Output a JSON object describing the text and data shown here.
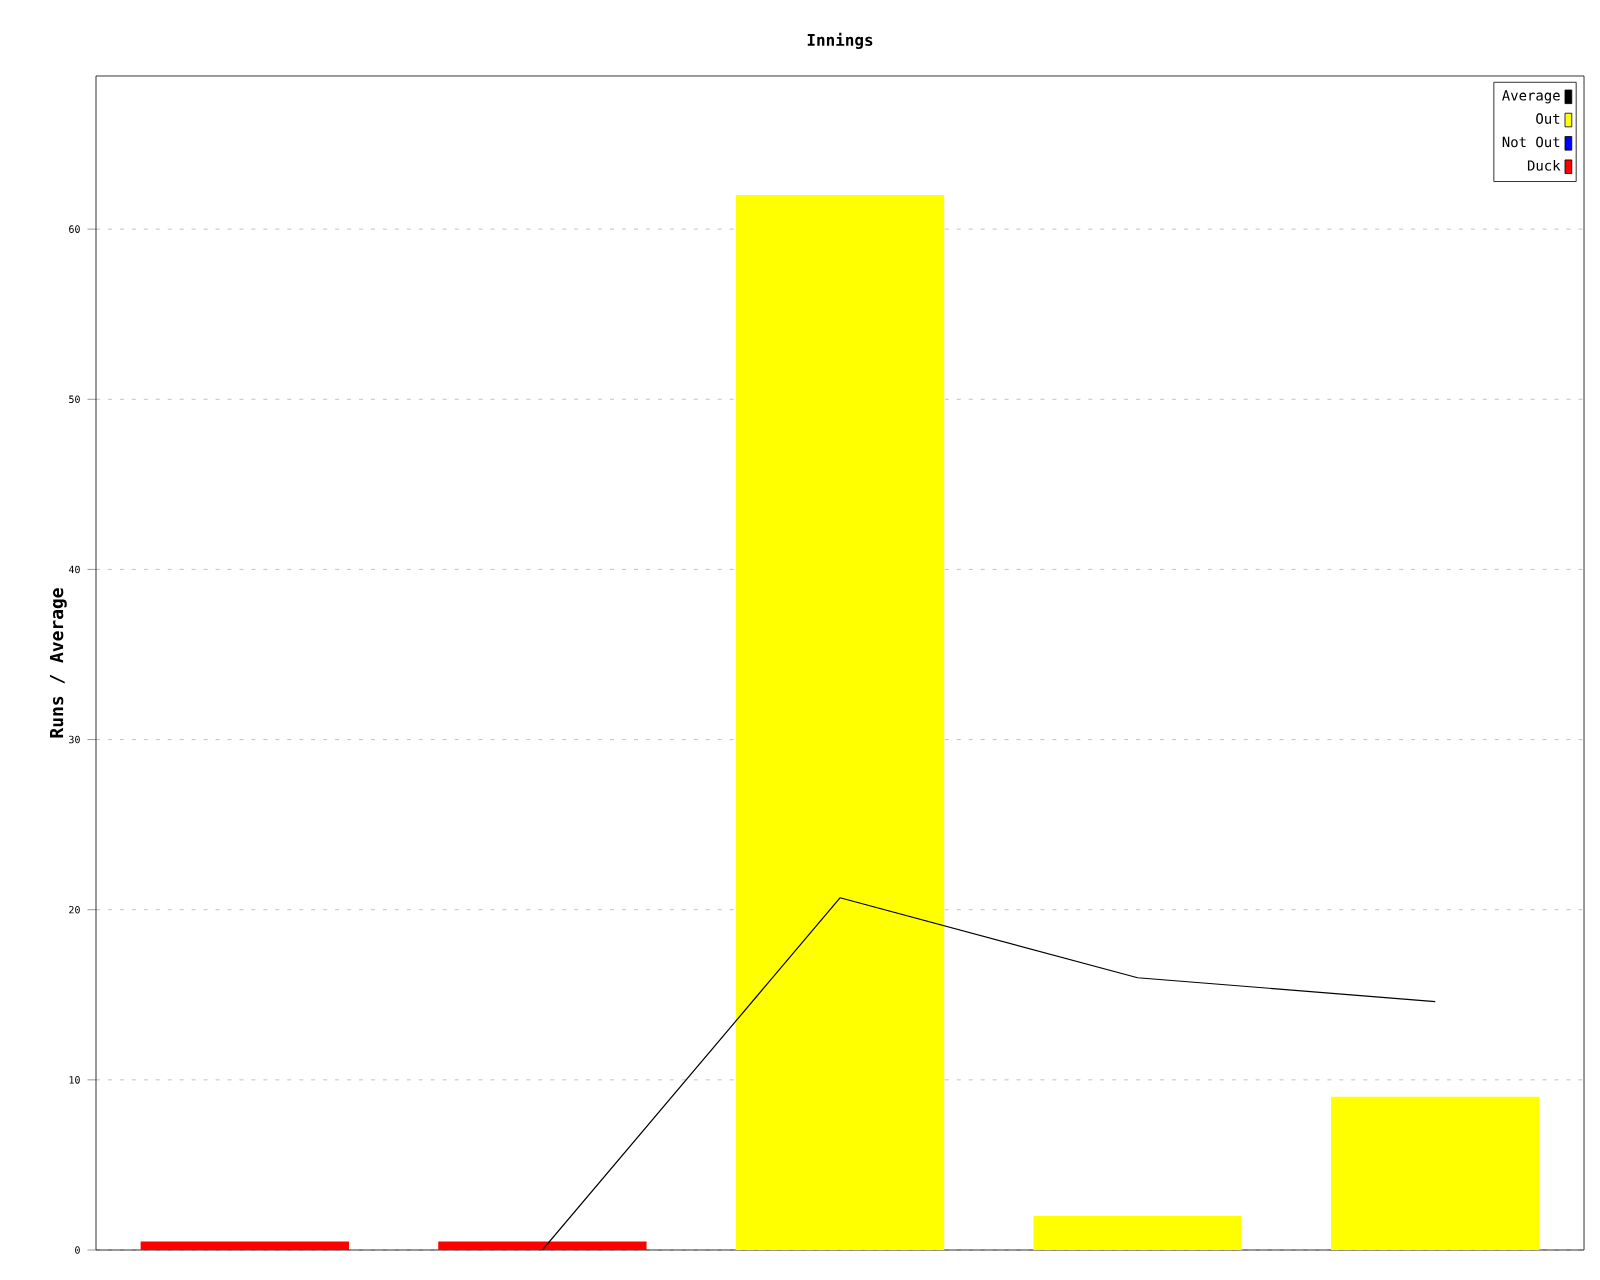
{
  "chart_data": {
    "type": "bar",
    "title": "Innings",
    "ylabel": "Runs / Average",
    "categories": [
      null,
      null,
      null,
      null,
      null
    ],
    "series": [
      {
        "name": "Average",
        "type": "line",
        "color": "#000000",
        "values": [
          null,
          0,
          20.7,
          16,
          14.6
        ]
      },
      {
        "name": "Out",
        "color": "#ffff00",
        "values": [
          null,
          null,
          62,
          2,
          9
        ]
      },
      {
        "name": "Not Out",
        "color": "#0000ff",
        "values": [
          null,
          null,
          null,
          null,
          null
        ]
      },
      {
        "name": "Duck",
        "color": "#ff0000",
        "values": [
          0.5,
          0.5,
          null,
          null,
          null
        ]
      }
    ],
    "ylim": [
      0,
      69
    ],
    "yticks": [
      0,
      10,
      20,
      30,
      40,
      50,
      60
    ],
    "grid": "y",
    "legend": "top right"
  }
}
